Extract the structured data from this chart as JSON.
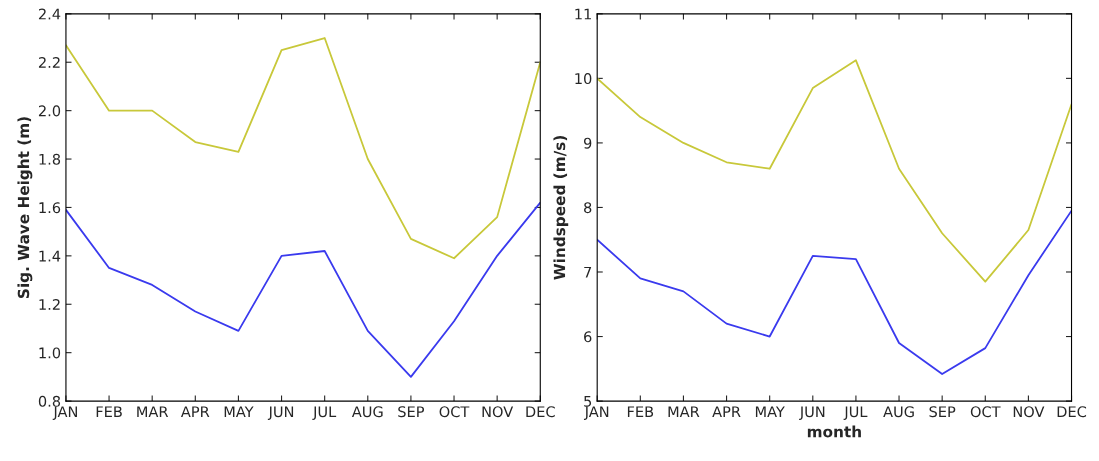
{
  "chart_data": [
    {
      "type": "line",
      "ylabel": "Sig. Wave Height (m)",
      "categories": [
        "JAN",
        "FEB",
        "MAR",
        "APR",
        "MAY",
        "JUN",
        "JUL",
        "AUG",
        "SEP",
        "OCT",
        "NOV",
        "DEC"
      ],
      "ylim": [
        0.8,
        2.4
      ],
      "yticks": [
        {
          "value": 0.8,
          "label": "0.8"
        },
        {
          "value": 1.0,
          "label": "1.0"
        },
        {
          "value": 1.2,
          "label": "1.2"
        },
        {
          "value": 1.4,
          "label": "1.4"
        },
        {
          "value": 1.6,
          "label": "1.6"
        },
        {
          "value": 1.8,
          "label": "1.8"
        },
        {
          "value": 2.0,
          "label": "2.0"
        },
        {
          "value": 2.2,
          "label": "2.2"
        },
        {
          "value": 2.4,
          "label": "2.4"
        }
      ],
      "grid": false,
      "series": [
        {
          "color": "#c8c83a",
          "values": [
            2.27,
            2.0,
            2.0,
            1.87,
            1.83,
            2.25,
            2.3,
            1.8,
            1.47,
            1.39,
            1.56,
            2.2
          ]
        },
        {
          "color": "#3a3aee",
          "values": [
            1.59,
            1.35,
            1.28,
            1.17,
            1.09,
            1.4,
            1.42,
            1.09,
            0.9,
            1.13,
            1.4,
            1.62
          ]
        }
      ]
    },
    {
      "type": "line",
      "xlabel": "month",
      "ylabel": "Windspeed (m/s)",
      "categories": [
        "JAN",
        "FEB",
        "MAR",
        "APR",
        "MAY",
        "JUN",
        "JUL",
        "AUG",
        "SEP",
        "OCT",
        "NOV",
        "DEC"
      ],
      "ylim": [
        5,
        11
      ],
      "yticks": [
        5,
        6,
        7,
        8,
        9,
        10,
        11
      ],
      "grid": false,
      "series": [
        {
          "color": "#c8c83a",
          "values": [
            10.0,
            9.4,
            9.0,
            8.7,
            8.6,
            9.85,
            10.28,
            8.6,
            7.6,
            6.85,
            7.65,
            9.6
          ]
        },
        {
          "color": "#3a3aee",
          "values": [
            7.5,
            6.9,
            6.7,
            6.2,
            6.0,
            7.25,
            7.2,
            5.9,
            5.42,
            5.82,
            6.95,
            7.95
          ]
        }
      ]
    }
  ]
}
